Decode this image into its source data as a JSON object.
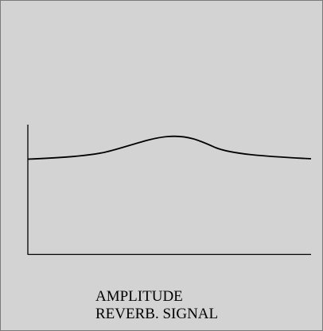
{
  "diagram": {
    "caption_line1": "AMPLITUDE",
    "caption_line2": "REVERB. SIGNAL",
    "background_color": "#d3d3d3",
    "line_color": "#000000"
  }
}
